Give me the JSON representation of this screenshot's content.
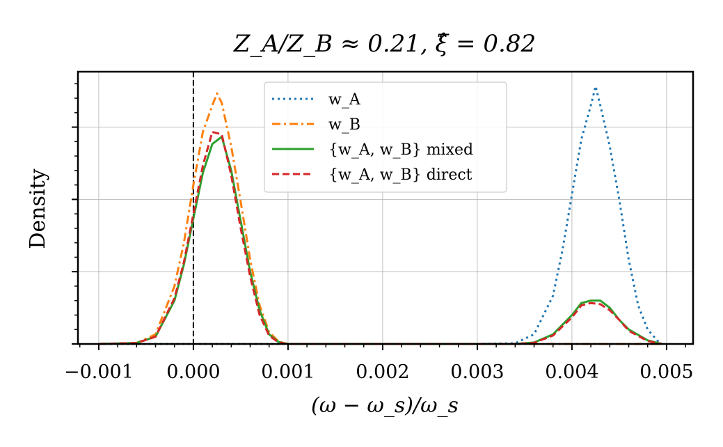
{
  "chart_data": {
    "type": "line",
    "title": "Z_A/Z_B ≈ 0.21, ξ̂ = 0.82",
    "xlabel": "(ω − ω_s)/ω_s",
    "ylabel": "Density",
    "xlim": [
      -0.00122,
      0.00528
    ],
    "ylim": [
      0,
      1.13
    ],
    "xticks": [
      -0.001,
      0.0,
      0.001,
      0.002,
      0.003,
      0.004,
      0.005
    ],
    "xtick_labels": [
      "−0.001",
      "0.000",
      "0.001",
      "0.002",
      "0.003",
      "0.004",
      "0.005"
    ],
    "yticks": [
      0.0,
      0.3,
      0.6,
      0.9
    ],
    "grid": true,
    "vline_x": 0.0,
    "legend_position": "top-center",
    "series": [
      {
        "name": "w_A",
        "label": "w_A",
        "color": "#1f77b4",
        "style": "dotted",
        "x": [
          -0.001,
          0.0,
          0.001,
          0.002,
          0.003,
          0.0034,
          0.0036,
          0.0038,
          0.0039,
          0.004,
          0.0041,
          0.0042,
          0.00425,
          0.0043,
          0.0044,
          0.0045,
          0.0046,
          0.0047,
          0.0048,
          0.0049,
          0.00495
        ],
        "y": [
          0.0,
          0.0,
          0.0,
          0.0,
          0.0,
          0.003,
          0.04,
          0.2,
          0.39,
          0.62,
          0.85,
          0.99,
          1.07,
          0.99,
          0.82,
          0.6,
          0.35,
          0.16,
          0.06,
          0.015,
          0.0
        ]
      },
      {
        "name": "w_B",
        "label": "w_B",
        "color": "#ff7f0e",
        "style": "dashdot",
        "x": [
          -0.001,
          -0.0006,
          -0.0004,
          -0.0002,
          -0.0001,
          0.0,
          0.0001,
          0.0002,
          0.00025,
          0.0003,
          0.0004,
          0.0005,
          0.0006,
          0.0007,
          0.0008,
          0.0009,
          0.001,
          0.002,
          0.003,
          0.004,
          0.00495
        ],
        "y": [
          0.0,
          0.004,
          0.04,
          0.24,
          0.42,
          0.66,
          0.88,
          0.99,
          1.04,
          1.0,
          0.82,
          0.59,
          0.35,
          0.16,
          0.05,
          0.01,
          0.0,
          0.0,
          0.0,
          0.0,
          0.0
        ]
      },
      {
        "name": "mixed",
        "label": "{w_A, w_B} mixed",
        "color": "#2ca02c",
        "style": "solid",
        "x": [
          -0.001,
          -0.0006,
          -0.0004,
          -0.0002,
          -0.0001,
          0.0,
          0.0001,
          0.0002,
          0.0003,
          0.0004,
          0.0005,
          0.0006,
          0.0007,
          0.0008,
          0.0009,
          0.001,
          0.002,
          0.0034,
          0.0036,
          0.0038,
          0.004,
          0.0041,
          0.0042,
          0.0043,
          0.0044,
          0.0045,
          0.0046,
          0.0048,
          0.00495
        ],
        "y": [
          0.0,
          0.004,
          0.03,
          0.18,
          0.33,
          0.52,
          0.71,
          0.83,
          0.86,
          0.72,
          0.51,
          0.3,
          0.14,
          0.04,
          0.008,
          0.0,
          0.0,
          0.0,
          0.006,
          0.04,
          0.12,
          0.17,
          0.18,
          0.18,
          0.15,
          0.1,
          0.06,
          0.015,
          0.0
        ]
      },
      {
        "name": "direct",
        "label": "{w_A, w_B} direct",
        "color": "#d62728",
        "style": "dashed",
        "x": [
          -0.001,
          -0.0006,
          -0.0004,
          -0.0002,
          -0.0001,
          0.0,
          0.0001,
          0.0002,
          0.0003,
          0.0004,
          0.0005,
          0.0006,
          0.0007,
          0.0008,
          0.0009,
          0.001,
          0.002,
          0.0034,
          0.0036,
          0.0038,
          0.004,
          0.0041,
          0.0042,
          0.0043,
          0.0044,
          0.0045,
          0.0046,
          0.0048,
          0.00495
        ],
        "y": [
          0.0,
          0.004,
          0.03,
          0.19,
          0.34,
          0.54,
          0.74,
          0.88,
          0.87,
          0.7,
          0.48,
          0.28,
          0.12,
          0.035,
          0.006,
          0.0,
          0.0,
          0.0,
          0.005,
          0.035,
          0.11,
          0.16,
          0.17,
          0.165,
          0.14,
          0.1,
          0.055,
          0.012,
          0.0
        ]
      }
    ]
  }
}
